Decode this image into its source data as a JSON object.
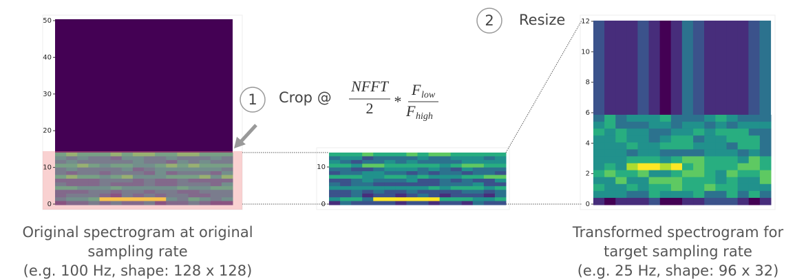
{
  "panels": [
    {
      "yticks": [
        0,
        10,
        20,
        30,
        40,
        50
      ],
      "caption": [
        "Original spectrogram at original",
        "sampling rate",
        "(e.g. 100 Hz, shape: 128 x 128)"
      ]
    },
    {
      "yticks": [
        0,
        10
      ]
    },
    {
      "yticks": [
        0,
        2,
        4,
        6,
        8,
        10,
        12
      ],
      "caption": [
        "Transformed spectrogram for",
        "target sampling rate",
        "(e.g. 25 Hz, shape: 96 x 32)"
      ]
    }
  ],
  "steps": [
    {
      "number": 1,
      "label": "Crop @"
    },
    {
      "number": 2,
      "label": "Resize"
    }
  ],
  "formula": {
    "numerator": "NFFT",
    "denominator": 2,
    "operator": "*",
    "f_top": "F",
    "f_top_sub": "low",
    "f_bottom": "F",
    "f_bottom_sub": "high"
  }
}
